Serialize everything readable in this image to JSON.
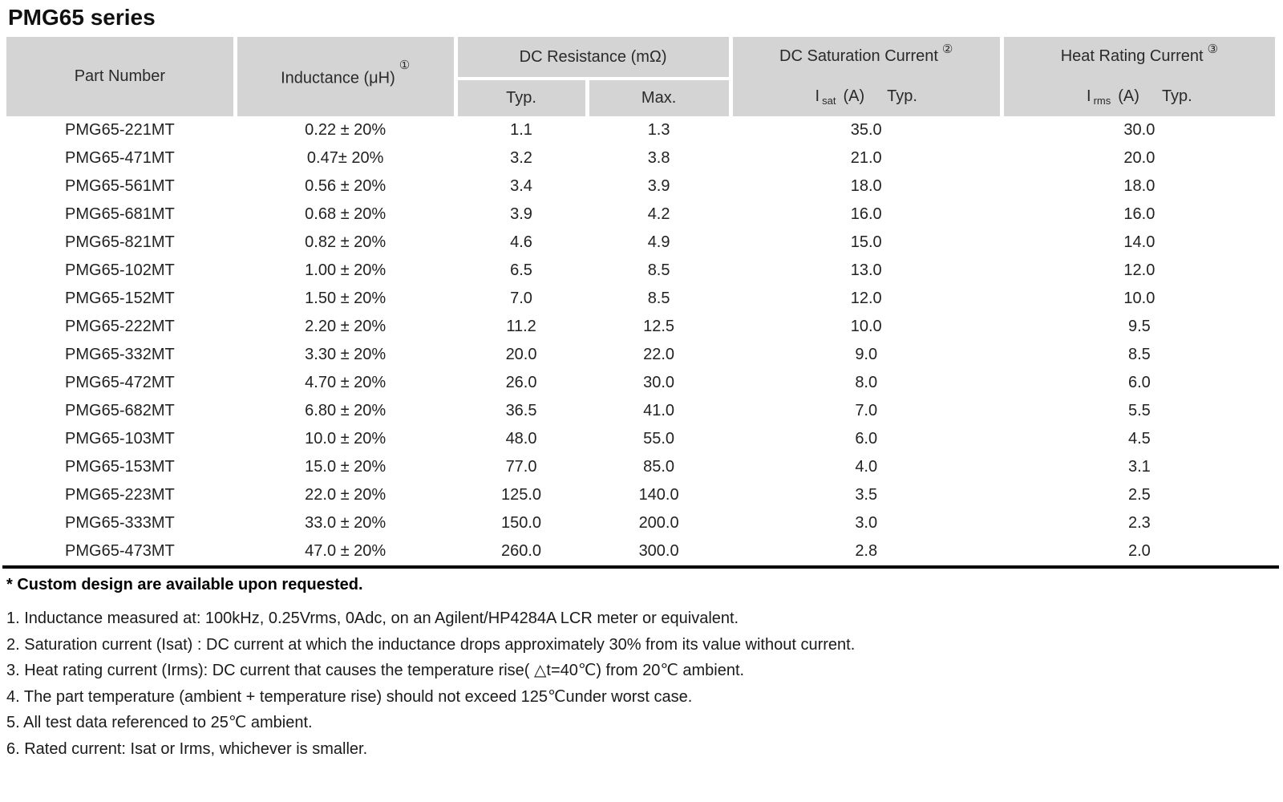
{
  "page_title": "PMG65 series",
  "colors": {
    "header_bg": "#d4d4d4",
    "table_bottom_rule": "#000000",
    "text": "#1c1c1c"
  },
  "table": {
    "headers": {
      "part_number": "Part Number",
      "inductance": "Inductance (μH)",
      "inductance_note": "①",
      "dc_resistance": "DC Resistance (mΩ)",
      "typ": "Typ.",
      "max": "Max.",
      "saturation": "DC Saturation Current",
      "saturation_note": "②",
      "saturation_sub": {
        "i": "I",
        "sub": "sat",
        "unit": "(A)",
        "typ": "Typ."
      },
      "heat": "Heat Rating Current",
      "heat_note": "③",
      "heat_sub": {
        "i": "I",
        "sub": "rms",
        "unit": "(A)",
        "typ": "Typ."
      }
    },
    "rows": [
      {
        "part": "PMG65-221MT",
        "inductance": "0.22 ± 20%",
        "dcr_typ": "1.1",
        "dcr_max": "1.3",
        "isat": "35.0",
        "irms": "30.0"
      },
      {
        "part": "PMG65-471MT",
        "inductance": "0.47± 20%",
        "dcr_typ": "3.2",
        "dcr_max": "3.8",
        "isat": "21.0",
        "irms": "20.0"
      },
      {
        "part": "PMG65-561MT",
        "inductance": "0.56 ± 20%",
        "dcr_typ": "3.4",
        "dcr_max": "3.9",
        "isat": "18.0",
        "irms": "18.0"
      },
      {
        "part": "PMG65-681MT",
        "inductance": "0.68 ± 20%",
        "dcr_typ": "3.9",
        "dcr_max": "4.2",
        "isat": "16.0",
        "irms": "16.0"
      },
      {
        "part": "PMG65-821MT",
        "inductance": "0.82 ± 20%",
        "dcr_typ": "4.6",
        "dcr_max": "4.9",
        "isat": "15.0",
        "irms": "14.0"
      },
      {
        "part": "PMG65-102MT",
        "inductance": "1.00 ± 20%",
        "dcr_typ": "6.5",
        "dcr_max": "8.5",
        "isat": "13.0",
        "irms": "12.0"
      },
      {
        "part": "PMG65-152MT",
        "inductance": "1.50 ± 20%",
        "dcr_typ": "7.0",
        "dcr_max": "8.5",
        "isat": "12.0",
        "irms": "10.0"
      },
      {
        "part": "PMG65-222MT",
        "inductance": "2.20 ± 20%",
        "dcr_typ": "11.2",
        "dcr_max": "12.5",
        "isat": "10.0",
        "irms": "9.5"
      },
      {
        "part": "PMG65-332MT",
        "inductance": "3.30 ± 20%",
        "dcr_typ": "20.0",
        "dcr_max": "22.0",
        "isat": "9.0",
        "irms": "8.5"
      },
      {
        "part": "PMG65-472MT",
        "inductance": "4.70 ± 20%",
        "dcr_typ": "26.0",
        "dcr_max": "30.0",
        "isat": "8.0",
        "irms": "6.0"
      },
      {
        "part": "PMG65-682MT",
        "inductance": "6.80 ± 20%",
        "dcr_typ": "36.5",
        "dcr_max": "41.0",
        "isat": "7.0",
        "irms": "5.5"
      },
      {
        "part": "PMG65-103MT",
        "inductance": "10.0 ± 20%",
        "dcr_typ": "48.0",
        "dcr_max": "55.0",
        "isat": "6.0",
        "irms": "4.5"
      },
      {
        "part": "PMG65-153MT",
        "inductance": "15.0 ± 20%",
        "dcr_typ": "77.0",
        "dcr_max": "85.0",
        "isat": "4.0",
        "irms": "3.1"
      },
      {
        "part": "PMG65-223MT",
        "inductance": "22.0 ± 20%",
        "dcr_typ": "125.0",
        "dcr_max": "140.0",
        "isat": "3.5",
        "irms": "2.5"
      },
      {
        "part": "PMG65-333MT",
        "inductance": "33.0 ± 20%",
        "dcr_typ": "150.0",
        "dcr_max": "200.0",
        "isat": "3.0",
        "irms": "2.3"
      },
      {
        "part": "PMG65-473MT",
        "inductance": "47.0 ± 20%",
        "dcr_typ": "260.0",
        "dcr_max": "300.0",
        "isat": "2.8",
        "irms": "2.0"
      }
    ]
  },
  "notes": {
    "custom": "* Custom design are available upon requested.",
    "items": [
      "1. Inductance measured at: 100kHz, 0.25Vrms, 0Adc, on an Agilent/HP4284A LCR meter or equivalent.",
      "2. Saturation current (Isat) : DC current at which the inductance drops approximately 30% from its value without current.",
      "3. Heat rating current (Irms): DC current that causes the temperature rise( △t=40℃) from 20℃ ambient.",
      "4. The part temperature (ambient + temperature rise) should not exceed 125℃under worst case.",
      "5. All test data referenced to 25℃ ambient.",
      "6. Rated current: Isat or Irms, whichever is smaller."
    ]
  }
}
